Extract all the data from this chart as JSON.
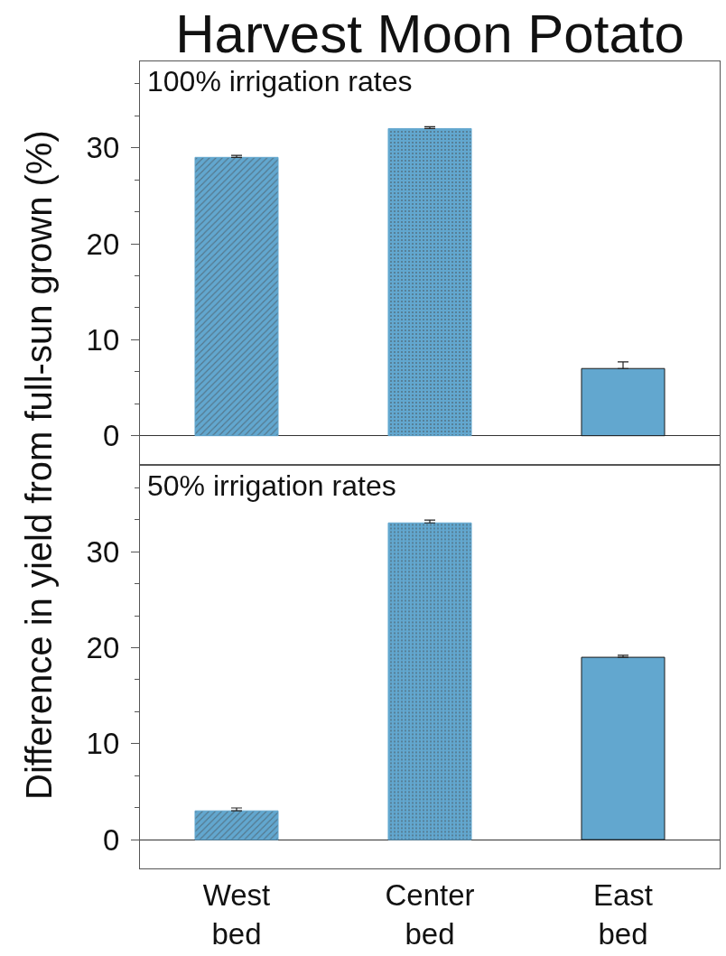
{
  "chart_data": [
    {
      "type": "bar",
      "title": "Harvest Moon Potato",
      "ylabel": "Difference in yield from full-sun grown (%)",
      "annotations": [
        "100% irrigation rates"
      ],
      "categories": [
        "West\nbed",
        "Center\nbed",
        "East\nbed"
      ],
      "values": [
        29,
        32,
        7
      ],
      "errors": [
        [
          29,
          29.2
        ],
        [
          32,
          32.2
        ],
        [
          7,
          7.7
        ]
      ],
      "colors": [
        "#62a7cf",
        "#62a7cf",
        "#62a7cf"
      ],
      "ylim": [
        -3,
        39
      ],
      "yticks": [
        0,
        {
          "value": 3.33,
          "label": null
        },
        {
          "value": 6.67,
          "label": null
        },
        10,
        {
          "value": 13.33,
          "label": null
        },
        {
          "value": 16.67,
          "label": null
        },
        20,
        {
          "value": 23.33,
          "label": null
        },
        {
          "value": 26.67,
          "label": null
        },
        30,
        {
          "value": 33.33,
          "label": null
        },
        {
          "value": 36.67,
          "label": null
        }
      ],
      "tick_labels": "y"
    },
    {
      "type": "bar",
      "annotations": [
        "50% irrigation rates"
      ],
      "categories": [
        "West\nbed",
        "Center\nbed",
        "East\nbed"
      ],
      "values": [
        3,
        33,
        19
      ],
      "errors": [
        [
          3,
          3.3
        ],
        [
          33,
          33.3
        ],
        [
          19,
          19.2
        ]
      ],
      "colors": [
        "#62a7cf",
        "#62a7cf",
        "#62a7cf"
      ],
      "ylim": [
        -3,
        39
      ],
      "yticks": [
        0,
        {
          "value": 3.33,
          "label": null
        },
        {
          "value": 6.67,
          "label": null
        },
        10,
        {
          "value": 13.33,
          "label": null
        },
        {
          "value": 16.67,
          "label": null
        },
        20,
        {
          "value": 23.33,
          "label": null
        },
        {
          "value": 26.67,
          "label": null
        },
        30,
        {
          "value": 33.33,
          "label": null
        },
        {
          "value": 36.67,
          "label": null
        }
      ]
    }
  ]
}
